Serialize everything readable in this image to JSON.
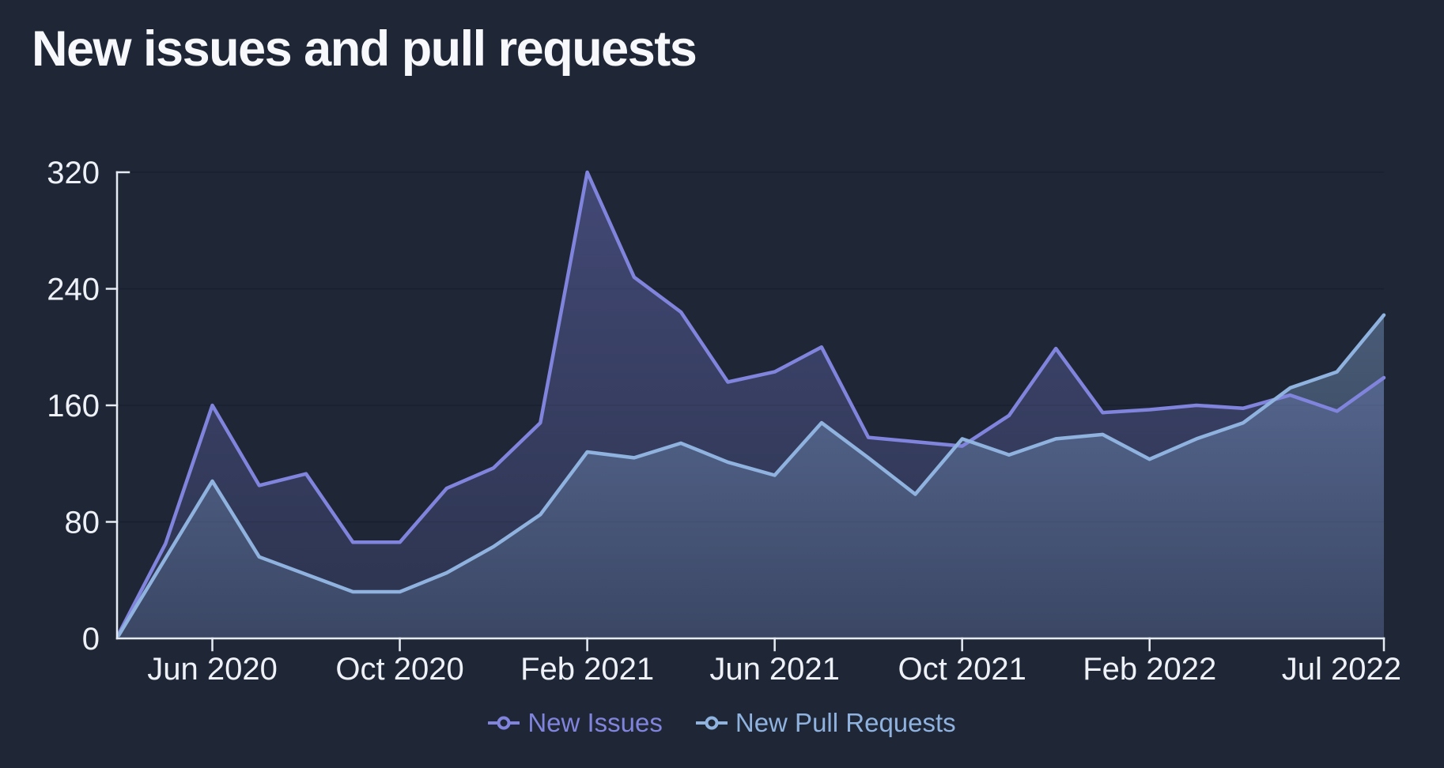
{
  "title": "New issues and pull requests",
  "colors": {
    "background": "#1f2737",
    "axis": "#e7ebf3",
    "tick_text": "#eef1f7",
    "gridline": "#0c1220",
    "issues_line": "#8184dc",
    "prs_line": "#8fb2df"
  },
  "chart_data": {
    "type": "line",
    "title": "New issues and pull requests",
    "xlabel": "",
    "ylabel": "",
    "grid": true,
    "legend_position": "bottom",
    "ylim": [
      0,
      320
    ],
    "y_ticks": [
      0,
      80,
      160,
      240,
      320
    ],
    "x_months": [
      "Apr 2020",
      "May 2020",
      "Jun 2020",
      "Jul 2020",
      "Aug 2020",
      "Sep 2020",
      "Oct 2020",
      "Nov 2020",
      "Dec 2020",
      "Jan 2021",
      "Feb 2021",
      "Mar 2021",
      "Apr 2021",
      "May 2021",
      "Jun 2021",
      "Jul 2021",
      "Aug 2021",
      "Sep 2021",
      "Oct 2021",
      "Nov 2021",
      "Dec 2021",
      "Jan 2022",
      "Feb 2022",
      "Mar 2022",
      "Apr 2022",
      "May 2022",
      "Jun 2022",
      "Jul 2022"
    ],
    "x_tick_labels": [
      {
        "label": "Jun 2020",
        "index": 2
      },
      {
        "label": "Oct 2020",
        "index": 6
      },
      {
        "label": "Feb 2021",
        "index": 10
      },
      {
        "label": "Jun 2021",
        "index": 14
      },
      {
        "label": "Oct 2021",
        "index": 18
      },
      {
        "label": "Feb 2022",
        "index": 22
      },
      {
        "label": "Jul 2022",
        "index": 27
      }
    ],
    "series": [
      {
        "name": "New Issues",
        "color": "#8184dc",
        "fill_color": "#7b7fd9",
        "fill_opacity_top": 0.38,
        "fill_opacity_bottom": 0.14,
        "values": [
          3,
          65,
          160,
          105,
          113,
          66,
          66,
          103,
          117,
          148,
          320,
          248,
          224,
          176,
          183,
          200,
          138,
          135,
          132,
          153,
          199,
          155,
          157,
          160,
          158,
          167,
          156,
          179
        ]
      },
      {
        "name": "New Pull Requests",
        "color": "#8fb2df",
        "fill_color": "#86a9d6",
        "fill_opacity_top": 0.4,
        "fill_opacity_bottom": 0.16,
        "values": [
          2,
          55,
          108,
          56,
          44,
          32,
          32,
          45,
          63,
          85,
          128,
          124,
          134,
          121,
          112,
          148,
          124,
          99,
          137,
          126,
          137,
          140,
          123,
          137,
          148,
          172,
          183,
          222
        ]
      }
    ]
  }
}
